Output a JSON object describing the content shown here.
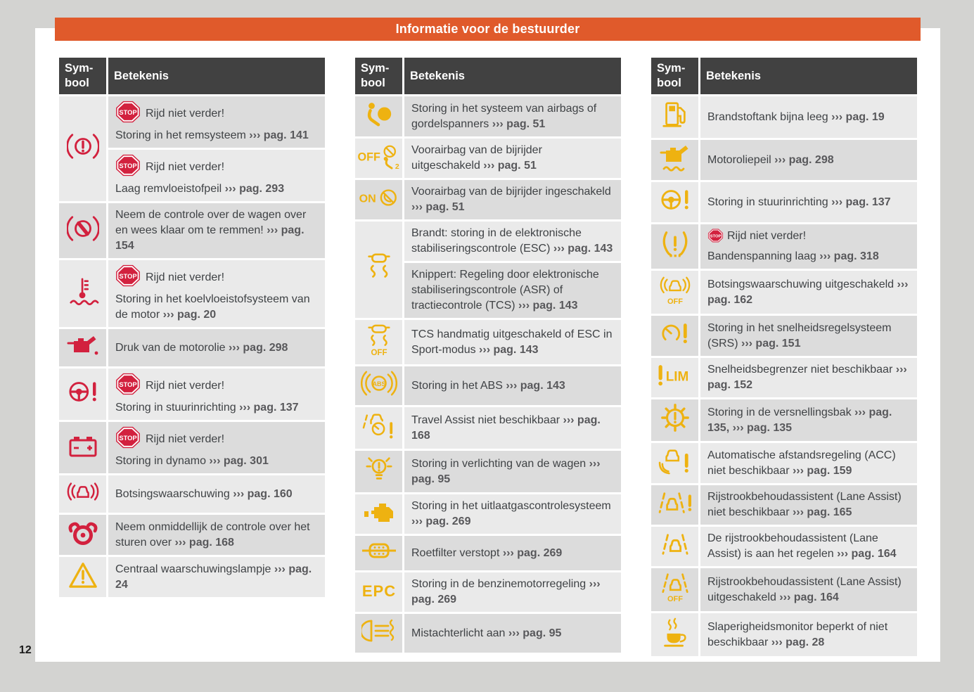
{
  "page": {
    "title": "Informatie voor de bestuurder",
    "number": "12"
  },
  "stop_label": "STOP",
  "colors": {
    "canvas": "#d3d3d1",
    "page": "#ffffff",
    "orange": "#e05a2b",
    "header_bg": "#414141",
    "row_dark": "#dcdcdc",
    "row_light": "#eaeaea",
    "text": "#3f4245",
    "ref": "#58585b",
    "red": "#d2213e",
    "yellow": "#eeb211"
  },
  "tables": [
    {
      "start_shade": "dark",
      "headers": {
        "symbol_line1": "Sym-",
        "symbol_line2": "bool",
        "meaning": "Betekenis"
      },
      "rows": [
        {
          "icon": "brake-warning-icon",
          "icon_color": "red",
          "cells": [
            {
              "paragraphs": [
                [
                  {
                    "t": "b"
                  },
                  {
                    "t": "txt",
                    "s": "Rijd niet verder!"
                  }
                ],
                [
                  {
                    "t": "txt",
                    "s": "Storing in het remsysteem "
                  },
                  {
                    "t": "ref",
                    "s": "››› pag. 141"
                  }
                ]
              ]
            },
            {
              "paragraphs": [
                [
                  {
                    "t": "b"
                  },
                  {
                    "t": "txt",
                    "s": "Rijd niet verder!"
                  }
                ],
                [
                  {
                    "t": "txt",
                    "s": "Laag remvloeistofpeil "
                  },
                  {
                    "t": "ref",
                    "s": "››› pag. 293"
                  }
                ]
              ]
            }
          ]
        },
        {
          "icon": "brake-control-icon",
          "icon_color": "red",
          "cells": [
            {
              "paragraphs": [
                [
                  {
                    "t": "txt",
                    "s": "Neem de controle over de wagen over en wees klaar om te remmen! "
                  },
                  {
                    "t": "ref",
                    "s": "››› pag. 154"
                  }
                ]
              ]
            }
          ]
        },
        {
          "icon": "coolant-temperature-icon",
          "icon_color": "red",
          "cells": [
            {
              "paragraphs": [
                [
                  {
                    "t": "b"
                  },
                  {
                    "t": "txt",
                    "s": "Rijd niet verder!"
                  }
                ],
                [
                  {
                    "t": "txt",
                    "s": "Storing in het koelvloeistofsysteem van de motor "
                  },
                  {
                    "t": "ref",
                    "s": "››› pag. 20"
                  }
                ]
              ]
            }
          ]
        },
        {
          "icon": "oil-pressure-icon",
          "icon_color": "red",
          "cells": [
            {
              "paragraphs": [
                [
                  {
                    "t": "txt",
                    "s": "Druk van de motorolie "
                  },
                  {
                    "t": "ref",
                    "s": "››› pag. 298"
                  }
                ]
              ]
            }
          ]
        },
        {
          "icon": "steering-warning-icon",
          "icon_color": "red",
          "cells": [
            {
              "paragraphs": [
                [
                  {
                    "t": "b"
                  },
                  {
                    "t": "txt",
                    "s": "Rijd niet verder!"
                  }
                ],
                [
                  {
                    "t": "txt",
                    "s": "Storing in stuurinrichting "
                  },
                  {
                    "t": "ref",
                    "s": "››› pag. 137"
                  }
                ]
              ]
            }
          ]
        },
        {
          "icon": "battery-icon",
          "icon_color": "red",
          "cells": [
            {
              "paragraphs": [
                [
                  {
                    "t": "b"
                  },
                  {
                    "t": "txt",
                    "s": "Rijd niet verder!"
                  }
                ],
                [
                  {
                    "t": "txt",
                    "s": "Storing in dynamo "
                  },
                  {
                    "t": "ref",
                    "s": "››› pag. 301"
                  }
                ]
              ]
            }
          ]
        },
        {
          "icon": "collision-warning-icon",
          "icon_color": "red",
          "cells": [
            {
              "paragraphs": [
                [
                  {
                    "t": "txt",
                    "s": "Botsingswaarschuwing "
                  },
                  {
                    "t": "ref",
                    "s": "››› pag. 160"
                  }
                ]
              ]
            }
          ]
        },
        {
          "icon": "hands-on-steering-icon",
          "icon_color": "red",
          "cells": [
            {
              "paragraphs": [
                [
                  {
                    "t": "txt",
                    "s": "Neem onmiddellijk de controle over het sturen over "
                  },
                  {
                    "t": "ref",
                    "s": "››› pag. 168"
                  }
                ]
              ]
            }
          ]
        },
        {
          "icon": "warning-triangle-icon",
          "icon_color": "yellow",
          "cells": [
            {
              "paragraphs": [
                [
                  {
                    "t": "txt",
                    "s": "Centraal waarschuwingslampje "
                  },
                  {
                    "t": "ref",
                    "s": "››› pag. 24"
                  }
                ]
              ]
            }
          ]
        }
      ]
    },
    {
      "start_shade": "dark",
      "headers": {
        "symbol_line1": "Sym-",
        "symbol_line2": "bool",
        "meaning": "Betekenis"
      },
      "rows": [
        {
          "icon": "airbag-icon",
          "icon_color": "yellow",
          "cells": [
            {
              "paragraphs": [
                [
                  {
                    "t": "txt",
                    "s": "Storing in het systeem van airbags of gordelspanners "
                  },
                  {
                    "t": "ref",
                    "s": "››› pag. 51"
                  }
                ]
              ]
            }
          ]
        },
        {
          "icon": "passenger-airbag-off-icon",
          "icon_color": "yellow",
          "cells": [
            {
              "paragraphs": [
                [
                  {
                    "t": "txt",
                    "s": "Voorairbag van de bijrijder uitgeschakeld "
                  },
                  {
                    "t": "ref",
                    "s": "››› pag. 51"
                  }
                ]
              ]
            }
          ]
        },
        {
          "icon": "passenger-airbag-on-icon",
          "icon_color": "yellow",
          "cells": [
            {
              "paragraphs": [
                [
                  {
                    "t": "txt",
                    "s": "Voorairbag van de bijrijder ingeschakeld "
                  },
                  {
                    "t": "ref",
                    "s": "››› pag. 51"
                  }
                ]
              ]
            }
          ]
        },
        {
          "icon": "esc-icon",
          "icon_color": "yellow",
          "cells": [
            {
              "paragraphs": [
                [
                  {
                    "t": "txt",
                    "s": "Brandt: storing in de elektronische stabiliseringscontrole (ESC) "
                  },
                  {
                    "t": "ref",
                    "s": "››› pag. 143"
                  }
                ]
              ]
            },
            {
              "paragraphs": [
                [
                  {
                    "t": "txt",
                    "s": "Knippert: Regeling door elektronische stabiliseringscontrole (ASR) of tractiecontrole (TCS) "
                  },
                  {
                    "t": "ref",
                    "s": "››› pag. 143"
                  }
                ]
              ]
            }
          ]
        },
        {
          "icon": "esc-off-icon",
          "icon_color": "yellow",
          "cells": [
            {
              "paragraphs": [
                [
                  {
                    "t": "txt",
                    "s": "TCS handmatig uitgeschakeld of ESC in Sport-modus "
                  },
                  {
                    "t": "ref",
                    "s": "››› pag. 143"
                  }
                ]
              ]
            }
          ]
        },
        {
          "icon": "abs-icon",
          "icon_color": "yellow",
          "cells": [
            {
              "paragraphs": [
                [
                  {
                    "t": "txt",
                    "s": "Storing in het ABS "
                  },
                  {
                    "t": "ref",
                    "s": "››› pag. 143"
                  }
                ]
              ]
            }
          ]
        },
        {
          "icon": "travel-assist-icon",
          "icon_color": "yellow",
          "cells": [
            {
              "paragraphs": [
                [
                  {
                    "t": "txt",
                    "s": "Travel Assist niet beschikbaar "
                  },
                  {
                    "t": "ref",
                    "s": "››› pag. 168"
                  }
                ]
              ]
            }
          ]
        },
        {
          "icon": "light-fault-icon",
          "icon_color": "yellow",
          "cells": [
            {
              "paragraphs": [
                [
                  {
                    "t": "txt",
                    "s": "Storing in verlichting van de wagen "
                  },
                  {
                    "t": "ref",
                    "s": "››› pag. 95"
                  }
                ]
              ]
            }
          ]
        },
        {
          "icon": "check-engine-icon",
          "icon_color": "yellow",
          "cells": [
            {
              "paragraphs": [
                [
                  {
                    "t": "txt",
                    "s": "Storing in het uitlaatgascontrolesysteem "
                  },
                  {
                    "t": "ref",
                    "s": "››› pag. 269"
                  }
                ]
              ]
            }
          ]
        },
        {
          "icon": "particulate-filter-icon",
          "icon_color": "yellow",
          "cells": [
            {
              "paragraphs": [
                [
                  {
                    "t": "txt",
                    "s": "Roetfilter verstopt "
                  },
                  {
                    "t": "ref",
                    "s": "››› pag. 269"
                  }
                ]
              ]
            }
          ]
        },
        {
          "icon": "epc-icon",
          "icon_color": "yellow",
          "cells": [
            {
              "paragraphs": [
                [
                  {
                    "t": "txt",
                    "s": "Storing in de benzinemotorregeling "
                  },
                  {
                    "t": "ref",
                    "s": "››› pag. 269"
                  }
                ]
              ]
            }
          ]
        },
        {
          "icon": "rear-fog-light-icon",
          "icon_color": "yellow",
          "cells": [
            {
              "paragraphs": [
                [
                  {
                    "t": "txt",
                    "s": "Mistachterlicht aan "
                  },
                  {
                    "t": "ref",
                    "s": "››› pag. 95"
                  }
                ]
              ]
            }
          ]
        }
      ]
    },
    {
      "start_shade": "light",
      "headers": {
        "symbol_line1": "Sym-",
        "symbol_line2": "bool",
        "meaning": "Betekenis"
      },
      "rows": [
        {
          "icon": "fuel-icon",
          "icon_color": "yellow",
          "cells": [
            {
              "paragraphs": [
                [
                  {
                    "t": "txt",
                    "s": "Brandstoftank bijna leeg "
                  },
                  {
                    "t": "ref",
                    "s": "››› pag. 19"
                  }
                ]
              ]
            }
          ]
        },
        {
          "icon": "oil-level-icon",
          "icon_color": "yellow",
          "cells": [
            {
              "paragraphs": [
                [
                  {
                    "t": "txt",
                    "s": "Motoroliepeil "
                  },
                  {
                    "t": "ref",
                    "s": "››› pag. 298"
                  }
                ]
              ]
            }
          ]
        },
        {
          "icon": "steering-warning-icon",
          "icon_color": "yellow",
          "cells": [
            {
              "paragraphs": [
                [
                  {
                    "t": "txt",
                    "s": "Storing in stuurinrichting "
                  },
                  {
                    "t": "ref",
                    "s": "››› pag. 137"
                  }
                ]
              ]
            }
          ]
        },
        {
          "icon": "tire-pressure-icon",
          "icon_color": "yellow",
          "cells": [
            {
              "paragraphs": [
                [
                  {
                    "t": "b",
                    "size": "s"
                  },
                  {
                    "t": "txt",
                    "s": "Rijd niet verder!"
                  }
                ],
                [
                  {
                    "t": "txt",
                    "s": "Bandenspanning laag "
                  },
                  {
                    "t": "ref",
                    "s": "››› pag. 318"
                  }
                ]
              ]
            }
          ]
        },
        {
          "icon": "collision-warning-off-icon",
          "icon_color": "yellow",
          "cells": [
            {
              "paragraphs": [
                [
                  {
                    "t": "txt",
                    "s": "Botsingswaarschuwing uitgeschakeld "
                  },
                  {
                    "t": "ref",
                    "s": "››› pag. 162"
                  }
                ]
              ]
            }
          ]
        },
        {
          "icon": "cruise-control-fault-icon",
          "icon_color": "yellow",
          "cells": [
            {
              "paragraphs": [
                [
                  {
                    "t": "txt",
                    "s": "Storing in het snelheidsregelsysteem (SRS) "
                  },
                  {
                    "t": "ref",
                    "s": "››› pag. 151"
                  }
                ]
              ]
            }
          ]
        },
        {
          "icon": "speed-limiter-icon",
          "icon_color": "yellow",
          "cells": [
            {
              "paragraphs": [
                [
                  {
                    "t": "txt",
                    "s": "Snelheidsbegrenzer niet beschikbaar "
                  },
                  {
                    "t": "ref",
                    "s": "››› pag. 152"
                  }
                ]
              ]
            }
          ]
        },
        {
          "icon": "gearbox-fault-icon",
          "icon_color": "yellow",
          "cells": [
            {
              "paragraphs": [
                [
                  {
                    "t": "txt",
                    "s": "Storing in de versnellingsbak "
                  },
                  {
                    "t": "ref",
                    "s": "››› pag. 135,"
                  },
                  {
                    "t": "txt",
                    "s": " "
                  },
                  {
                    "t": "ref",
                    "s": "››› pag. 135"
                  }
                ]
              ]
            }
          ]
        },
        {
          "icon": "acc-icon",
          "icon_color": "yellow",
          "cells": [
            {
              "paragraphs": [
                [
                  {
                    "t": "txt",
                    "s": "Automatische afstandsregeling (ACC) niet beschikbaar "
                  },
                  {
                    "t": "ref",
                    "s": "››› pag. 159"
                  }
                ]
              ]
            }
          ]
        },
        {
          "icon": "lane-assist-fault-icon",
          "icon_color": "yellow",
          "cells": [
            {
              "paragraphs": [
                [
                  {
                    "t": "txt",
                    "s": "Rijstrookbehoudassistent (Lane Assist) niet beschikbaar "
                  },
                  {
                    "t": "ref",
                    "s": "››› pag. 165"
                  }
                ]
              ]
            }
          ]
        },
        {
          "icon": "lane-assist-active-icon",
          "icon_color": "yellow",
          "cells": [
            {
              "paragraphs": [
                [
                  {
                    "t": "txt",
                    "s": "De rijstrookbehoudassistent (Lane Assist) is aan het regelen "
                  },
                  {
                    "t": "ref",
                    "s": "››› pag. 164"
                  }
                ]
              ]
            }
          ]
        },
        {
          "icon": "lane-assist-off-icon",
          "icon_color": "yellow",
          "cells": [
            {
              "paragraphs": [
                [
                  {
                    "t": "txt",
                    "s": "Rijstrookbehoudassistent (Lane Assist) uitgeschakeld "
                  },
                  {
                    "t": "ref",
                    "s": "››› pag. 164"
                  }
                ]
              ]
            }
          ]
        },
        {
          "icon": "drowsiness-icon",
          "icon_color": "yellow",
          "cells": [
            {
              "paragraphs": [
                [
                  {
                    "t": "txt",
                    "s": "Slaperigheidsmonitor beperkt of niet beschikbaar "
                  },
                  {
                    "t": "ref",
                    "s": "››› pag. 28"
                  }
                ]
              ]
            }
          ]
        }
      ]
    }
  ]
}
